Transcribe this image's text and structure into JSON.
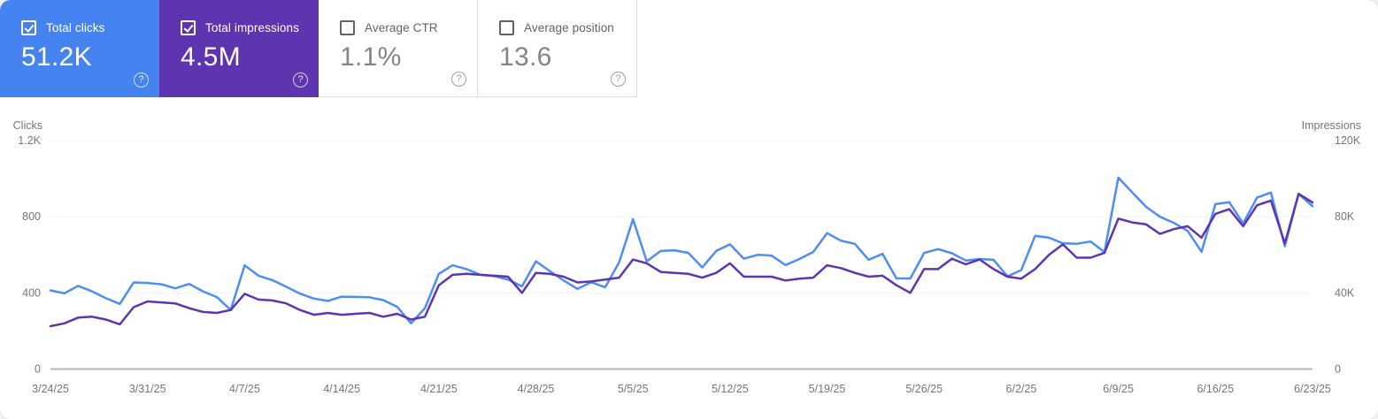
{
  "cards": [
    {
      "label": "Total clicks",
      "value": "51.2K",
      "checked": true,
      "bg": "#4583f1"
    },
    {
      "label": "Total impressions",
      "value": "4.5M",
      "checked": true,
      "bg": "#5e35b1"
    },
    {
      "label": "Average CTR",
      "value": "1.1%",
      "checked": false
    },
    {
      "label": "Average position",
      "value": "13.6",
      "checked": false
    }
  ],
  "chart_data": {
    "type": "line",
    "x_tick_labels": [
      "3/24/25",
      "3/31/25",
      "4/7/25",
      "4/14/25",
      "4/21/25",
      "4/28/25",
      "5/5/25",
      "5/12/25",
      "5/19/25",
      "5/26/25",
      "6/2/25",
      "6/9/25",
      "6/16/25",
      "6/23/25"
    ],
    "x_start_date": "3/24/25",
    "x_end_date": "6/23/25",
    "x_interval": "daily",
    "left_axis": {
      "label": "Clicks",
      "tick_labels": [
        "0",
        "400",
        "800",
        "1.2K"
      ],
      "tick_values": [
        0,
        400,
        800,
        1200
      ],
      "max": 1200
    },
    "right_axis": {
      "label": "Impressions",
      "tick_labels": [
        "0",
        "40K",
        "80K",
        "120K"
      ],
      "tick_values": [
        0,
        40000,
        80000,
        120000
      ],
      "max": 120000
    },
    "grid": "horizontal",
    "legend": "none",
    "grid_color": "#f1f3f4",
    "axis_line_color": "#b3b6bb",
    "tick_color": "#757575",
    "series": [
      {
        "name": "Clicks",
        "axis": "left",
        "color": "#4e8df5",
        "values": [
          413,
          398,
          437,
          408,
          372,
          342,
          455,
          452,
          445,
          424,
          447,
          408,
          378,
          310,
          545,
          490,
          467,
          432,
          396,
          370,
          358,
          380,
          379,
          377,
          362,
          327,
          240,
          320,
          500,
          545,
          525,
          495,
          488,
          470,
          434,
          566,
          515,
          465,
          421,
          456,
          430,
          560,
          787,
          566,
          620,
          624,
          610,
          534,
          620,
          655,
          580,
          600,
          596,
          546,
          578,
          615,
          714,
          674,
          658,
          574,
          605,
          476,
          476,
          610,
          630,
          608,
          570,
          578,
          574,
          487,
          520,
          700,
          690,
          660,
          658,
          670,
          614,
          1005,
          928,
          852,
          800,
          768,
          725,
          616,
          866,
          876,
          765,
          900,
          927,
          645,
          920,
          855
        ]
      },
      {
        "name": "Impressions",
        "axis": "right",
        "color": "#5e35b1",
        "values": [
          22500,
          24000,
          27000,
          27500,
          26000,
          23500,
          32500,
          35500,
          35000,
          34500,
          32000,
          30000,
          29500,
          31000,
          39500,
          36500,
          36000,
          34500,
          31000,
          28500,
          29500,
          28500,
          29000,
          29500,
          27500,
          29000,
          26000,
          27500,
          44000,
          49500,
          50000,
          49500,
          49000,
          48500,
          40000,
          50500,
          50000,
          48500,
          45500,
          46000,
          47000,
          48000,
          57500,
          55500,
          51000,
          50500,
          50000,
          48000,
          50500,
          55500,
          48500,
          48500,
          48500,
          46500,
          47500,
          48000,
          54500,
          53000,
          50500,
          48500,
          49000,
          44000,
          40000,
          52500,
          52500,
          58000,
          55000,
          57500,
          52500,
          48500,
          47500,
          52500,
          60000,
          65500,
          58500,
          58500,
          61000,
          79000,
          77000,
          76000,
          71000,
          73500,
          75000,
          69000,
          81500,
          84000,
          75000,
          86000,
          88500,
          66000,
          92000,
          87500
        ]
      }
    ]
  }
}
